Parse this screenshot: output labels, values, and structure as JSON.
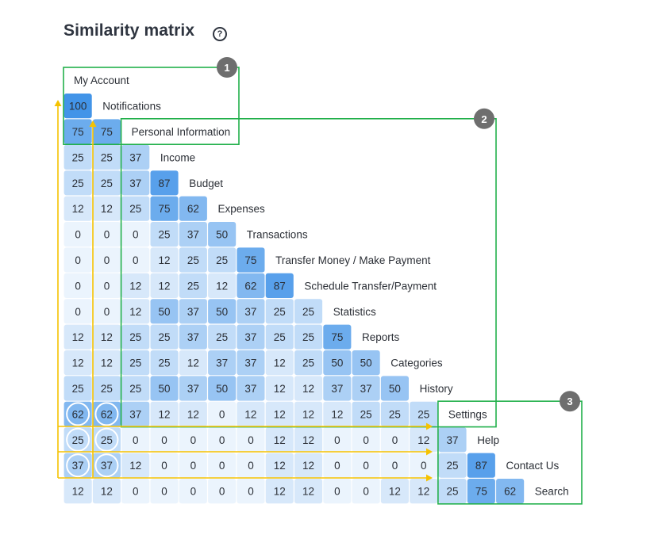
{
  "title": "Similarity matrix",
  "help_icon": "?",
  "chart_data": {
    "type": "heatmap",
    "title": "Similarity matrix",
    "labels": [
      "My Account",
      "Notifications",
      "Personal Information",
      "Income",
      "Budget",
      "Expenses",
      "Transactions",
      "Transfer Money / Make Payment",
      "Schedule Transfer/Payment",
      "Statistics",
      "Reports",
      "Categories",
      "History",
      "Settings",
      "Help",
      "Contact Us",
      "Search"
    ],
    "rows": [
      [],
      [
        100
      ],
      [
        75,
        75
      ],
      [
        25,
        25,
        37
      ],
      [
        25,
        25,
        37,
        87
      ],
      [
        12,
        12,
        25,
        75,
        62
      ],
      [
        0,
        0,
        0,
        25,
        37,
        50
      ],
      [
        0,
        0,
        0,
        12,
        25,
        25,
        75
      ],
      [
        0,
        0,
        12,
        12,
        25,
        12,
        62,
        87
      ],
      [
        0,
        0,
        12,
        50,
        37,
        50,
        37,
        25,
        25
      ],
      [
        12,
        12,
        25,
        25,
        37,
        25,
        37,
        25,
        25,
        75
      ],
      [
        12,
        12,
        25,
        25,
        12,
        37,
        37,
        12,
        25,
        50,
        50
      ],
      [
        25,
        25,
        25,
        50,
        37,
        50,
        37,
        12,
        12,
        37,
        37,
        50
      ],
      [
        62,
        62,
        37,
        12,
        12,
        0,
        12,
        12,
        12,
        12,
        25,
        25,
        25
      ],
      [
        25,
        25,
        0,
        0,
        0,
        0,
        0,
        12,
        12,
        0,
        0,
        0,
        12,
        37
      ],
      [
        37,
        37,
        12,
        0,
        0,
        0,
        0,
        12,
        12,
        0,
        0,
        0,
        0,
        25,
        87
      ],
      [
        12,
        12,
        0,
        0,
        0,
        0,
        0,
        12,
        12,
        0,
        0,
        12,
        12,
        25,
        75,
        62
      ]
    ],
    "groups": [
      {
        "badge": "1",
        "from": 0,
        "to": 2,
        "border_color": "#22b04b"
      },
      {
        "badge": "2",
        "from": 2,
        "to": 13,
        "border_color": "#22b04b"
      },
      {
        "badge": "3",
        "from": 13,
        "to": 16,
        "border_color": "#22b04b"
      }
    ],
    "highlighted_cells": [
      [
        13,
        0
      ],
      [
        13,
        1
      ],
      [
        14,
        0
      ],
      [
        14,
        1
      ],
      [
        15,
        0
      ],
      [
        15,
        1
      ]
    ],
    "arrow_color": "#f5c200"
  }
}
